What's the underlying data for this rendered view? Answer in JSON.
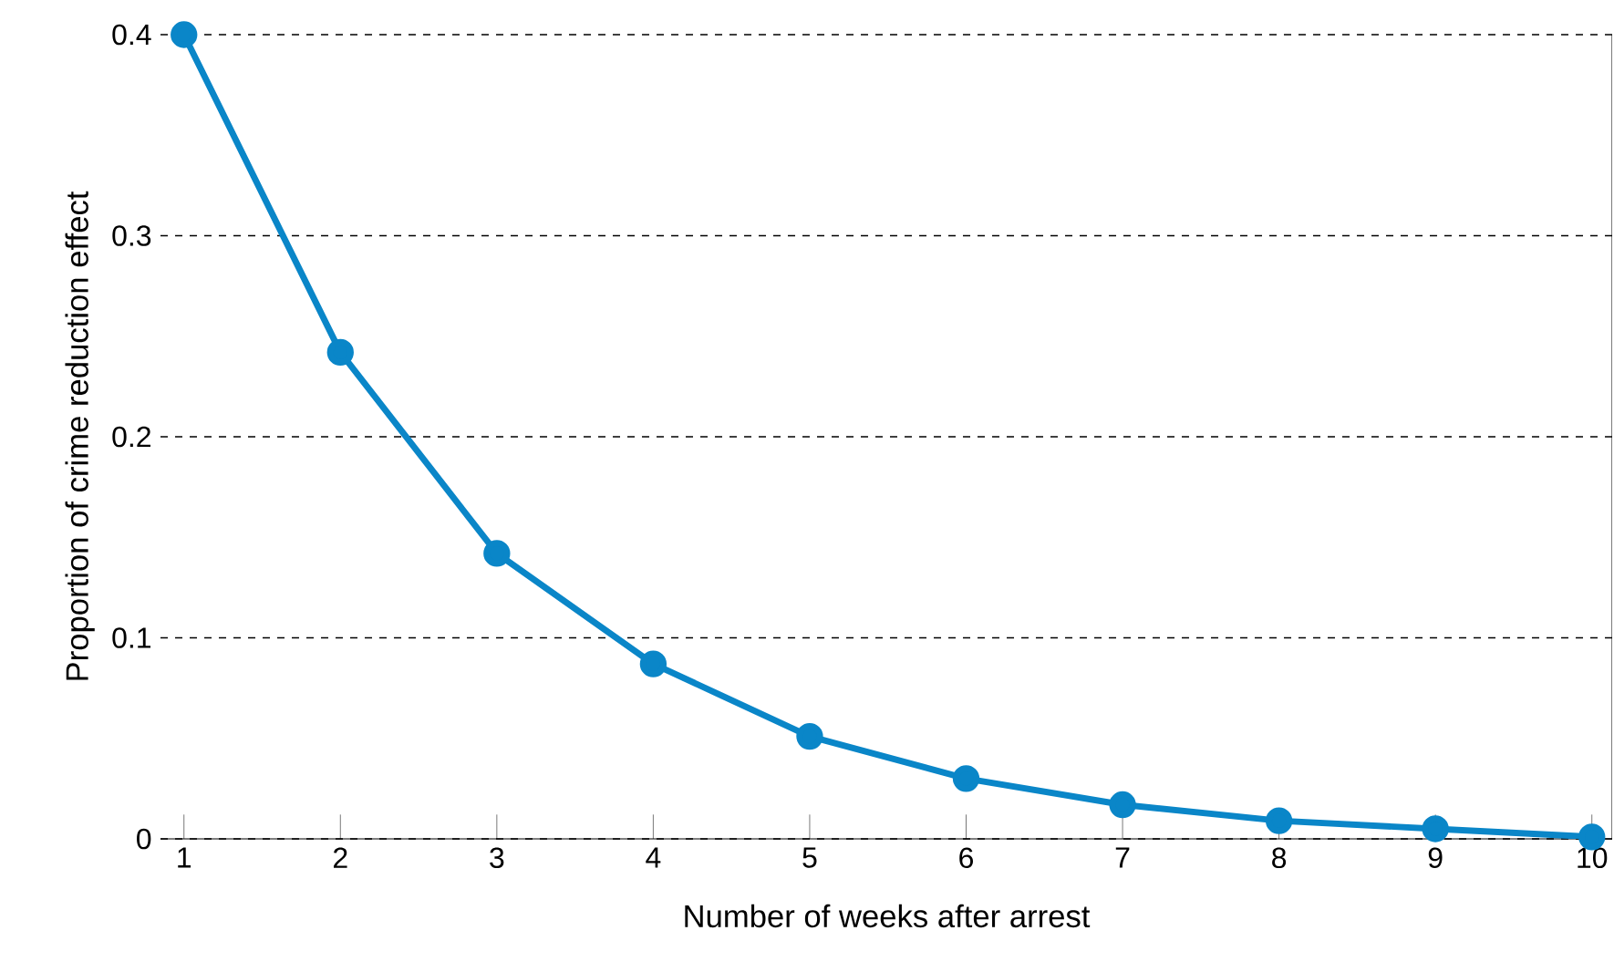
{
  "chart_data": {
    "type": "line",
    "xlabel": "Number of weeks after arrest",
    "ylabel": "Proportion of crime reduction effect",
    "x": [
      1,
      2,
      3,
      4,
      5,
      6,
      7,
      8,
      9,
      10
    ],
    "series": [
      {
        "color": "#0a86c8",
        "values": [
          0.4,
          0.242,
          0.142,
          0.087,
          0.051,
          0.03,
          0.017,
          0.009,
          0.005,
          0.001
        ]
      }
    ],
    "xlim": [
      0.85,
      10.13
    ],
    "ylim": [
      0,
      0.4
    ],
    "xticks": [
      1,
      2,
      3,
      4,
      5,
      6,
      7,
      8,
      9,
      10
    ],
    "yticks": [
      0,
      0.1,
      0.2,
      0.3,
      0.4
    ],
    "grid": "y",
    "marker": "circle",
    "line_style": "solid"
  }
}
